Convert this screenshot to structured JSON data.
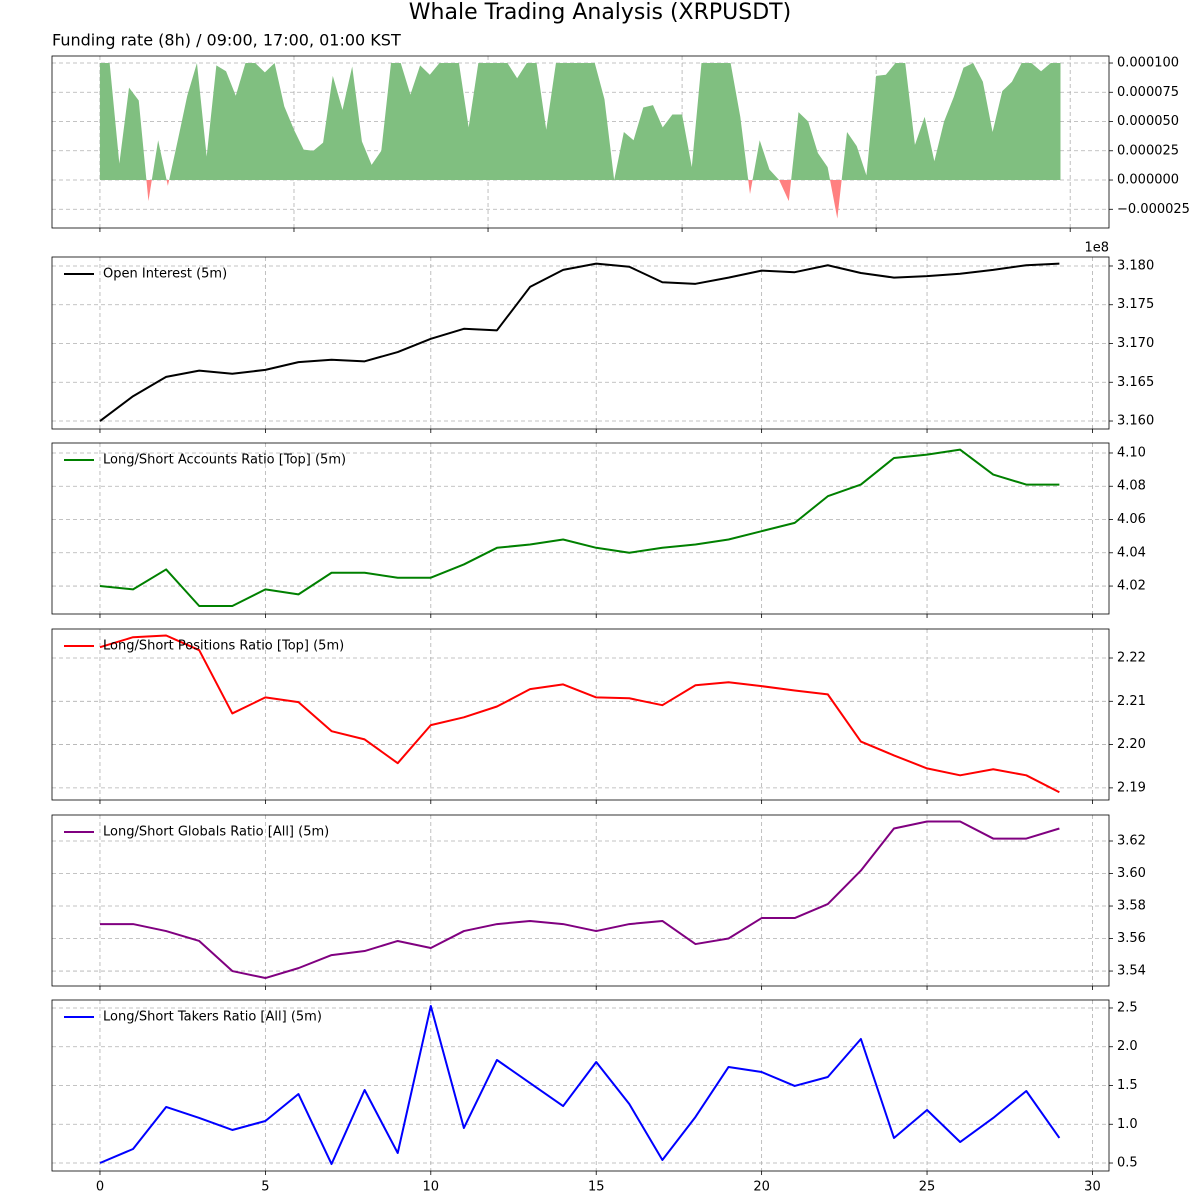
{
  "title": "Whale Trading Analysis (XRPUSDT)",
  "chart_data": [
    {
      "type": "area",
      "title": "Funding rate (8h) / 09:00, 17:00, 01:00 KST",
      "positive_color": "#80bf80",
      "negative_color": "#ff8080",
      "grid": true,
      "xtick_labels": false,
      "xlim": [
        -2.47,
        52
      ],
      "xticks": [
        0,
        10,
        20,
        30,
        40,
        50
      ],
      "ylim": [
        -4.1e-05,
        0.000106
      ],
      "yticks": [
        {
          "value": -2.5e-05,
          "label": "−0.000025"
        },
        {
          "value": 0,
          "label": "0.000000"
        },
        {
          "value": 2.5e-05,
          "label": "0.000025"
        },
        {
          "value": 5e-05,
          "label": "0.000050"
        },
        {
          "value": 7.5e-05,
          "label": "0.000075"
        },
        {
          "value": 0.0001,
          "label": "0.000100"
        }
      ],
      "x": [
        0,
        0.5,
        1,
        1.5,
        2,
        2.5,
        3,
        3.5,
        4,
        4.5,
        5,
        5.5,
        6,
        6.5,
        7,
        7.5,
        8,
        8.5,
        9,
        9.5,
        10,
        10.5,
        11,
        11.5,
        12,
        12.5,
        13,
        13.5,
        14,
        14.5,
        15,
        15.5,
        16,
        16.5,
        17,
        17.5,
        18,
        18.5,
        19,
        19.5,
        20,
        20.5,
        21,
        21.5,
        22,
        22.5,
        23,
        23.5,
        24,
        24.5,
        25,
        25.5,
        26,
        26.5,
        27,
        27.5,
        28,
        28.5,
        29,
        29.5,
        30,
        30.5,
        31,
        31.5,
        32,
        32.5,
        33,
        33.5,
        34,
        34.5,
        35,
        35.5,
        36,
        36.5,
        37,
        37.5,
        38,
        38.5,
        39,
        39.5,
        40,
        40.5,
        41,
        41.5,
        42,
        42.5,
        43,
        43.5,
        44,
        44.5,
        45,
        45.5,
        46,
        46.5,
        47,
        47.5,
        48,
        48.5,
        49,
        49.5
      ],
      "values": [
        0.0001,
        0.0001,
        1.4e-05,
        7.9e-05,
        6.8e-05,
        -1.8e-05,
        3.4e-05,
        -5e-06,
        3.3e-05,
        7.2e-05,
        0.0001,
        2e-05,
        9.8e-05,
        9.3e-05,
        7.2e-05,
        0.0001,
        0.0001,
        9.2e-05,
        0.0001,
        6.3e-05,
        4.3e-05,
        2.6e-05,
        2.5e-05,
        3.2e-05,
        8.9e-05,
        6e-05,
        9.7e-05,
        3.3e-05,
        1.3e-05,
        2.5e-05,
        0.0001,
        0.0001,
        7.3e-05,
        9.8e-05,
        9e-05,
        0.0001,
        0.0001,
        0.0001,
        4.5e-05,
        0.0001,
        0.0001,
        0.0001,
        0.0001,
        8.7e-05,
        0.0001,
        0.0001,
        4.3e-05,
        0.0001,
        0.0001,
        0.0001,
        0.0001,
        0.0001,
        6.9e-05,
        0,
        4.1e-05,
        3.4e-05,
        6.2e-05,
        6.4e-05,
        4.5e-05,
        5.6e-05,
        5.6e-05,
        1.1e-05,
        0.0001,
        0.0001,
        0.0001,
        0.0001,
        5.4e-05,
        -1.2e-05,
        3.4e-05,
        9e-06,
        0,
        -1.8e-05,
        5.8e-05,
        5e-05,
        2.3e-05,
        1.1e-05,
        -3.3e-05,
        4.1e-05,
        2.9e-05,
        4e-06,
        8.9e-05,
        9e-05,
        0.0001,
        0.0001,
        3e-05,
        5.4e-05,
        1.6e-05,
        5e-05,
        7.1e-05,
        9.6e-05,
        0.0001,
        8.4e-05,
        4.1e-05,
        7.6e-05,
        8.4e-05,
        0.0001,
        0.0001,
        9.3e-05,
        0.0001,
        0.0001
      ]
    },
    {
      "type": "line",
      "grid": true,
      "xtick_labels": false,
      "legend": "upper left",
      "offset_text": "1e8",
      "xlim": [
        -1.45,
        30.5
      ],
      "xticks": [
        0,
        5,
        10,
        15,
        20,
        25,
        30
      ],
      "ylim": [
        3.15897,
        3.18116
      ],
      "yticks": [
        {
          "value": 3.16,
          "label": "3.160"
        },
        3.165,
        {
          "value": 3.17,
          "label": "3.170"
        },
        3.175,
        {
          "value": 3.18,
          "label": "3.180"
        }
      ],
      "x": [
        0,
        1,
        2,
        3,
        4,
        5,
        6,
        7,
        8,
        9,
        10,
        11,
        12,
        13,
        14,
        15,
        16,
        17,
        18,
        19,
        20,
        21,
        22,
        23,
        24,
        25,
        26,
        27,
        28,
        29
      ],
      "series": [
        {
          "name": "Open Interest (5m)",
          "color": "#000000",
          "values": [
            3.16,
            3.1632,
            3.1657,
            3.1665,
            3.1661,
            3.1666,
            3.1676,
            3.1679,
            3.1677,
            3.1689,
            3.1706,
            3.1719,
            3.1717,
            3.1773,
            3.1795,
            3.1803,
            3.1799,
            3.1779,
            3.1777,
            3.1785,
            3.1794,
            3.1792,
            3.1801,
            3.1791,
            3.1785,
            3.1787,
            3.179,
            3.1795,
            3.1801,
            3.1803
          ]
        }
      ]
    },
    {
      "type": "line",
      "grid": true,
      "xtick_labels": false,
      "legend": "upper left",
      "xlim": [
        -1.45,
        30.5
      ],
      "xticks": [
        0,
        5,
        10,
        15,
        20,
        25,
        30
      ],
      "ylim": [
        4.0032,
        4.106
      ],
      "yticks": [
        4.02,
        4.04,
        4.06,
        4.08,
        {
          "value": 4.1,
          "label": "4.10"
        }
      ],
      "x": [
        0,
        1,
        2,
        3,
        4,
        5,
        6,
        7,
        8,
        9,
        10,
        11,
        12,
        13,
        14,
        15,
        16,
        17,
        18,
        19,
        20,
        21,
        22,
        23,
        24,
        25,
        26,
        27,
        28,
        29
      ],
      "series": [
        {
          "name": "Long/Short Accounts Ratio [Top] (5m)",
          "color": "#008000",
          "values": [
            4.02,
            4.018,
            4.03,
            4.008,
            4.008,
            4.018,
            4.015,
            4.028,
            4.028,
            4.025,
            4.025,
            4.033,
            4.043,
            4.045,
            4.048,
            4.043,
            4.04,
            4.043,
            4.045,
            4.048,
            4.053,
            4.058,
            4.074,
            4.081,
            4.097,
            4.099,
            4.102,
            4.087,
            4.081,
            4.081
          ]
        }
      ]
    },
    {
      "type": "line",
      "grid": true,
      "xtick_labels": false,
      "legend": "upper left",
      "xlim": [
        -1.45,
        30.5
      ],
      "xticks": [
        0,
        5,
        10,
        15,
        20,
        25,
        30
      ],
      "ylim": [
        2.1872,
        2.2267
      ],
      "yticks": [
        2.19,
        {
          "value": 2.2,
          "label": "2.20"
        },
        2.21,
        2.22
      ],
      "x": [
        0,
        1,
        2,
        3,
        4,
        5,
        6,
        7,
        8,
        9,
        10,
        11,
        12,
        13,
        14,
        15,
        16,
        17,
        18,
        19,
        20,
        21,
        22,
        23,
        24,
        25,
        26,
        27,
        28,
        29
      ],
      "series": [
        {
          "name": "Long/Short Positions Ratio [Top] (5m)",
          "color": "#ff0000",
          "values": [
            2.2225,
            2.2248,
            2.2252,
            2.2218,
            2.2072,
            2.2109,
            2.2098,
            2.2031,
            2.2012,
            2.1957,
            2.2045,
            2.2063,
            2.2088,
            2.2128,
            2.2139,
            2.2109,
            2.2107,
            2.2091,
            2.2137,
            2.2144,
            2.2135,
            2.2125,
            2.2116,
            2.2007,
            2.1975,
            2.1945,
            2.1929,
            2.1943,
            2.1929,
            2.189
          ]
        }
      ]
    },
    {
      "type": "line",
      "grid": true,
      "xtick_labels": false,
      "legend": "upper left",
      "xlim": [
        -1.45,
        30.5
      ],
      "xticks": [
        0,
        5,
        10,
        15,
        20,
        25,
        30
      ],
      "ylim": [
        3.5308,
        3.636
      ],
      "yticks": [
        3.54,
        3.56,
        3.58,
        {
          "value": 3.6,
          "label": "3.60"
        },
        3.62
      ],
      "x": [
        0,
        1,
        2,
        3,
        4,
        5,
        6,
        7,
        8,
        9,
        10,
        11,
        12,
        13,
        14,
        15,
        16,
        17,
        18,
        19,
        20,
        21,
        22,
        23,
        24,
        25,
        26,
        27,
        28,
        29
      ],
      "series": [
        {
          "name": "Long/Short Globals Ratio [All] (5m)",
          "color": "#800080",
          "values": [
            3.5689,
            3.5689,
            3.5646,
            3.5585,
            3.54,
            3.5357,
            3.5418,
            3.5498,
            3.5523,
            3.5585,
            3.5542,
            3.5646,
            3.5689,
            3.5708,
            3.5689,
            3.5646,
            3.5689,
            3.5708,
            3.5566,
            3.56,
            3.5726,
            3.5726,
            3.5812,
            3.6018,
            3.6277,
            3.632,
            3.632,
            3.6215,
            3.6215,
            3.6277
          ]
        }
      ]
    },
    {
      "type": "line",
      "grid": true,
      "xtick_labels": true,
      "legend": "upper left",
      "xlim": [
        -1.45,
        30.5
      ],
      "xticks": [
        0,
        5,
        10,
        15,
        20,
        25,
        30
      ],
      "ylim": [
        0.397,
        2.603
      ],
      "yticks": [
        0.5,
        {
          "value": 1,
          "label": "1.0"
        },
        1.5,
        {
          "value": 2,
          "label": "2.0"
        },
        2.5
      ],
      "x": [
        0,
        1,
        2,
        3,
        4,
        5,
        6,
        7,
        8,
        9,
        10,
        11,
        12,
        13,
        14,
        15,
        16,
        17,
        18,
        19,
        20,
        21,
        22,
        23,
        24,
        25,
        26,
        27,
        28,
        29
      ],
      "series": [
        {
          "name": "Long/Short Takers Ratio [All] (5m)",
          "color": "#0000ff",
          "values": [
            0.5,
            0.681,
            1.223,
            1.081,
            0.926,
            1.042,
            1.39,
            0.487,
            1.442,
            0.629,
            2.526,
            0.952,
            1.829,
            1.532,
            1.235,
            1.803,
            1.261,
            0.539,
            1.094,
            1.739,
            1.674,
            1.494,
            1.61,
            2.1,
            0.823,
            1.184,
            0.771,
            1.081,
            1.429,
            0.823
          ]
        }
      ]
    }
  ]
}
